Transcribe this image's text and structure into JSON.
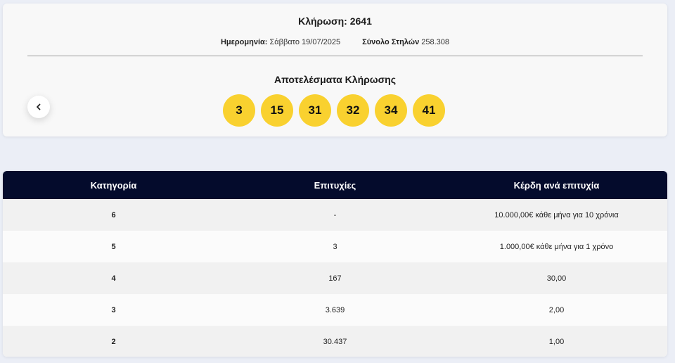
{
  "draw": {
    "title": "Κλήρωση: 2641",
    "date_label": "Ημερομηνία:",
    "date_value": "Σάββατο 19/07/2025",
    "columns_label": "Σύνολο Στηλών",
    "columns_value": "258.308",
    "results_title": "Αποτελέσματα Κλήρωσης",
    "numbers": [
      "3",
      "15",
      "31",
      "32",
      "34",
      "41"
    ],
    "ball_color": "#f9d12f"
  },
  "nav": {
    "back_icon": "chevron-left-icon"
  },
  "table": {
    "header_color": "#040b2c",
    "headers": [
      "Κατηγορία",
      "Επιτυχίες",
      "Κέρδη ανά επιτυχία"
    ],
    "rows": [
      {
        "category": "6",
        "winners": "-",
        "prize": "10.000,00€ κάθε μήνα για 10 χρόνια"
      },
      {
        "category": "5",
        "winners": "3",
        "prize": "1.000,00€ κάθε μήνα για 1 χρόνο"
      },
      {
        "category": "4",
        "winners": "167",
        "prize": "30,00"
      },
      {
        "category": "3",
        "winners": "3.639",
        "prize": "2,00"
      },
      {
        "category": "2",
        "winners": "30.437",
        "prize": "1,00"
      }
    ]
  }
}
